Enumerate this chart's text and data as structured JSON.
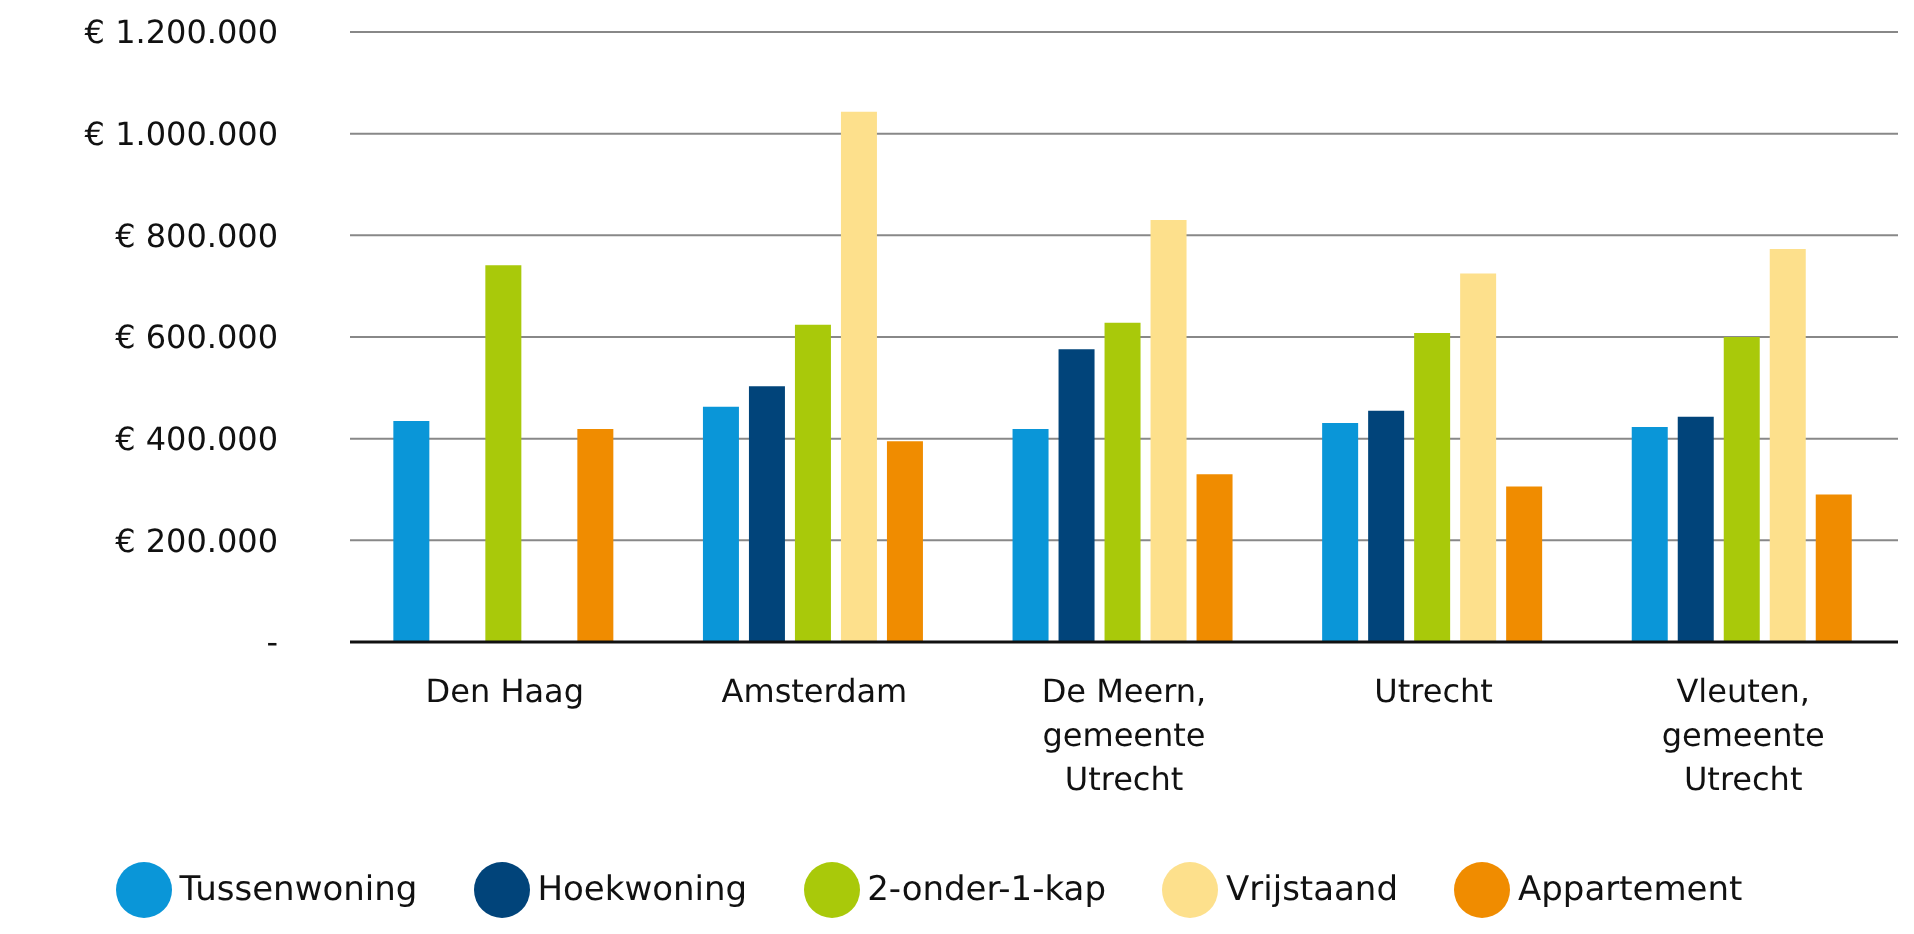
{
  "chart_data": {
    "type": "bar",
    "categories": [
      "Den Haag",
      "Amsterdam",
      "De Meern, gemeente Utrecht",
      "Utrecht",
      "Vleuten, gemeente Utrecht"
    ],
    "series": [
      {
        "name": "Tussenwoning",
        "color": "#0a96d8",
        "values": [
          435000,
          463000,
          419000,
          431000,
          423000
        ]
      },
      {
        "name": "Hoekwoning",
        "color": "#01447a",
        "values": [
          null,
          503000,
          576000,
          455000,
          443000
        ]
      },
      {
        "name": "2-onder-1-kap",
        "color": "#a9c90a",
        "values": [
          741000,
          624000,
          628000,
          608000,
          600000
        ]
      },
      {
        "name": "Vrijstaand",
        "color": "#fde08c",
        "values": [
          null,
          1043000,
          830000,
          725000,
          773000
        ]
      },
      {
        "name": "Appartement",
        "color": "#f08c00",
        "values": [
          419000,
          395000,
          330000,
          306000,
          290000
        ]
      }
    ],
    "ylim": [
      0,
      1200000
    ],
    "yticks": [
      {
        "value": 0,
        "label": "-"
      },
      {
        "value": 200000,
        "label": "€  200.000"
      },
      {
        "value": 400000,
        "label": "€ 400.000"
      },
      {
        "value": 600000,
        "label": "€ 600.000"
      },
      {
        "value": 800000,
        "label": "€ 800.000"
      },
      {
        "value": 1000000,
        "label": "€ 1.000.000"
      },
      {
        "value": 1200000,
        "label": "€ 1.200.000"
      }
    ],
    "grid": "y",
    "legend": "bottom"
  }
}
